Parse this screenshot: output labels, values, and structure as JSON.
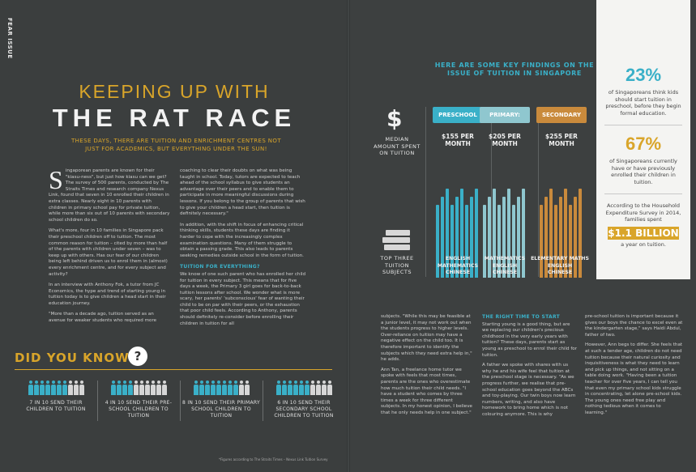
{
  "section_tab": "FEAR ISSUE",
  "title_line1": "KEEPING UP WITH",
  "title_line2": "THE RAT RACE",
  "subtitle": "THESE DAYS, THERE ARE TUITION AND ENRICHMENT CENTRES NOT JUST FOR ACADEMICS, BUT EVERYTHING UNDER THE SUN!",
  "article": {
    "dropcap": "S",
    "col1": [
      "ingaporean parents are known for their \"kiasu-ness\", but just how kiasu can we get? The survey of 500 parents, conducted by The Straits Times and research company Nexus Link, found that seven in 10 enrolled their children in extra classes. Nearly eight in 10 parents with children in primary school pay for private tuition, while more than six out of 10 parents with secondary school children do so.",
      "What's more, four in 10 families in Singapore pack their preschool children off to tuition. The most common reason for tuition – cited by more than half of the parents with children under seven – was to keep up with others. Has our fear of our children being left behind driven us to enrol them in (almost) every enrichment centre, and for every subject and activity?",
      "In an interview with Anthony Fok, a tutor from JC Economics, the hype and trend of starting young in tuition today is to give children a head start in their education journey.",
      "\"More than a decade ago, tuition served as an avenue for weaker students who required more"
    ],
    "col2": [
      "coaching to clear their doubts on what was being taught in school. Today, tutors are expected to teach ahead of the school syllabus to give students an advantage over their peers and to enable them to participate in more meaningful discussions during lessons. If you belong to the group of parents that wish to give your children a head start, then tuition is definitely necessary.\"",
      "In addition, with the shift in focus of enhancing critical thinking skills, students these days are finding it harder to cope with the increasingly complex examination questions. Many of them struggle to obtain a passing grade. This also leads to parents seeking remedies outside school in the form of tuition."
    ],
    "col2_heading": "TUITION FOR EVERYTHING?",
    "col2b": [
      "We know of one such parent who has enrolled her child for tuition in every subject. This means that for five days a week, the Primary 3 girl goes for back-to-back tuition lessons after school. We wonder what is more scary, her parents' 'subconscious' fear of wanting their child to be on par with their peers, or the exhaustion that poor child feels. According to Anthony, parents should definitely re-consider before enrolling their children in tuition for all"
    ]
  },
  "did_you_know": {
    "label": "DID YOU KNOW?",
    "bubble": "?",
    "stats": [
      {
        "text": "7 IN 10 SEND THEIR CHILDREN TO TUITION",
        "count": 7
      },
      {
        "text": "4 IN 10 SEND THEIR PRE-SCHOOL CHILDREN TO TUITION",
        "count": 4
      },
      {
        "text": "8 IN 10 SEND THEIR PRIMARY SCHOOL CHILDREN TO TUITION",
        "count": 8
      },
      {
        "text": "6 IN 10 SEND THEIR SECONDARY SCHOOL CHILDREN TO TUITION",
        "count": 6
      }
    ],
    "footnote": "*Figures according to The Straits Times – Nexus Link Tuition Survey"
  },
  "infographic": {
    "heading": "HERE ARE SOME KEY FINDINGS ON THE ISSUE OF TUITION IN SINGAPORE",
    "dollar": "$",
    "median_label": "MEDIAN AMOUNT SPENT ON TUITION",
    "subjects_label": "TOP THREE TUITION SUBJECTS",
    "levels": [
      {
        "name": "PRESCHOOL",
        "price": "$155 PER MONTH",
        "color": "#3ab0c8",
        "subjects": [
          "ENGLISH",
          "MATHEMATICS",
          "CHINESE"
        ]
      },
      {
        "name": "PRIMARY:",
        "price": "$205 PER MONTH",
        "color": "#8fc7cf",
        "subjects": [
          "MATHEMATICS",
          "ENGLISH",
          "CHINESE"
        ]
      },
      {
        "name": "SECONDARY",
        "price": "$255 PER MONTH",
        "color": "#c98a3c",
        "subjects": [
          "ELEMENTARY MATHS",
          "ENGLISH",
          "CHINESE"
        ]
      }
    ]
  },
  "sidebar": {
    "stat1_pct": "23%",
    "stat1_text": "of Singaporeans think kids should start tuition in preschool, before they begin formal education.",
    "stat2_pct": "67%",
    "stat2_text": "of Singaporeans currently have or have previously enrolled their children in tuition.",
    "stat3_text": "According to the Household Expenditure Survey in 2014, families spent",
    "stat3_money": "$1.1 BILLION",
    "stat3_suffix": "a year on tuition.",
    "colors": {
      "teal": "#3ab0c8",
      "gold": "#d9a52a"
    }
  },
  "right_article": {
    "col1": [
      "subjects. \"While this may be feasible at a junior level, it may not work out when the students progress to higher levels. Over-reliance on tuition may have a negative effect on the child too. It is therefore important to identify the subjects which they need extra help in,\" he adds.",
      "Ann Tan, a freelance home tutor we spoke with feels that most times, parents are the ones who overestimate how much tuition their child needs. \"I have a student who comes by three times a week for three different subjects. In my honest opinion, I believe that he only needs help in one subject.\""
    ],
    "col2_heading": "THE RIGHT TIME TO START",
    "col2": [
      "Starting young is a good thing, but are we replacing our children's precious childhood in the very early years with tuition? These days, parents start as young as preschool to enrol their child for tuition.",
      "A father we spoke with shares with us why he and his wife feel that tuition at the preschool stage is necessary. \"As we progress further, we realise that pre-school education goes beyond the ABCs and toy-playing. Our twin boys now learn numbers, writing, and also have homework to bring home which is not colouring anymore. This is why"
    ],
    "col3": [
      "pre-school tuition is important because it gives our boys the chance to excel even at the kindergarten stage,\" says Haidi Abdul, father of two.",
      "However, Ann begs to differ. She feels that at such a tender age, children do not need tuition because their natural curiosity and inquisitiveness is what they need to learn and pick up things, and not sitting on a table doing work. \"Having been a tuition teacher for over five years, I can tell you that even my primary school kids struggle in concentrating, let alone pre-school kids. The young ones need free play and nothing tedious when it comes to learning.\""
    ]
  }
}
